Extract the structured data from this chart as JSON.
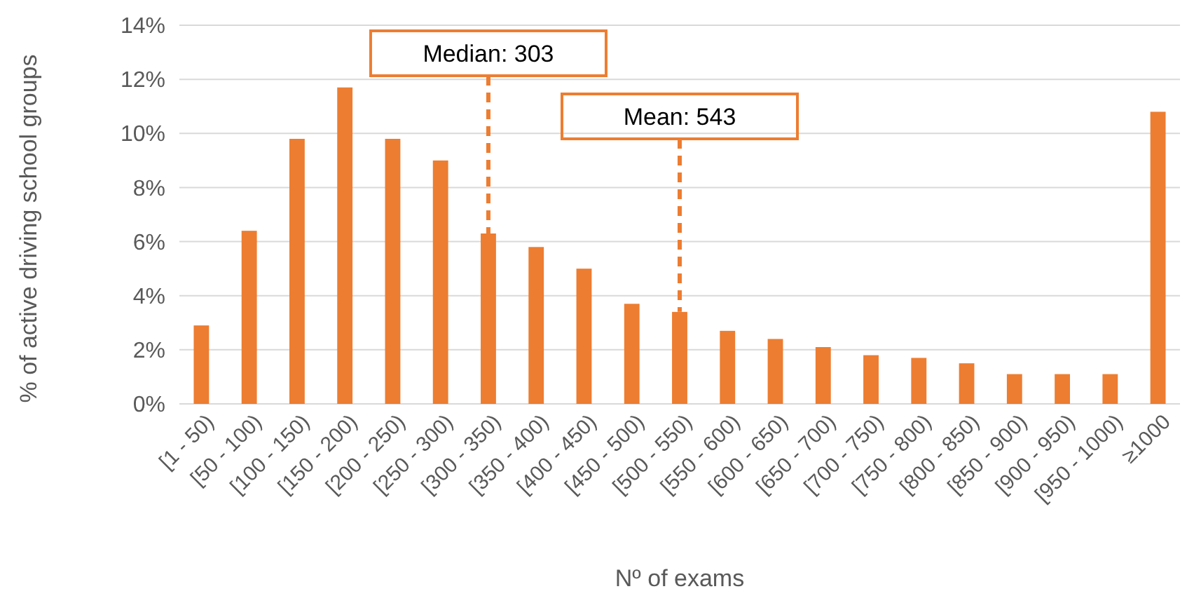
{
  "chart_data": {
    "type": "bar",
    "xlabel": "Nº of exams",
    "ylabel": "% of active driving school groups",
    "categories": [
      "[1 - 50)",
      "[50 - 100)",
      "[100 - 150)",
      "[150 - 200)",
      "[200 - 250)",
      "[250 - 300)",
      "[300 - 350)",
      "[350 - 400)",
      "[400 - 450)",
      "[450 - 500)",
      "[500 - 550)",
      "[550 - 600)",
      "[600 - 650)",
      "[650 - 700)",
      "[700 - 750)",
      "[750 - 800)",
      "[800 - 850)",
      "[850 - 900)",
      "[900 - 950)",
      "[950 - 1000)",
      "≥1000"
    ],
    "values": [
      2.9,
      6.4,
      9.8,
      11.7,
      9.8,
      9.0,
      6.3,
      5.8,
      5.0,
      3.7,
      3.4,
      2.7,
      2.4,
      2.1,
      1.8,
      1.7,
      1.5,
      1.1,
      1.1,
      1.1,
      10.8
    ],
    "color": "#ed7d31",
    "ylim": [
      0,
      14
    ],
    "yticks": [
      {
        "value": 0,
        "label": "0%"
      },
      {
        "value": 2,
        "label": "2%"
      },
      {
        "value": 4,
        "label": "4%"
      },
      {
        "value": 6,
        "label": "6%"
      },
      {
        "value": 8,
        "label": "8%"
      },
      {
        "value": 10,
        "label": "10%"
      },
      {
        "value": 12,
        "label": "12%"
      },
      {
        "value": 14,
        "label": "14%"
      }
    ],
    "grid": "y",
    "ref_lines": [
      {
        "axis": "x",
        "value": "[300 - 350)",
        "label": "Median: 303",
        "color": "#ed7d31",
        "line_style": "dashed"
      },
      {
        "axis": "x",
        "value": "[500 - 550)",
        "label": "Mean: 543",
        "color": "#ed7d31",
        "line_style": "dashed"
      }
    ]
  }
}
